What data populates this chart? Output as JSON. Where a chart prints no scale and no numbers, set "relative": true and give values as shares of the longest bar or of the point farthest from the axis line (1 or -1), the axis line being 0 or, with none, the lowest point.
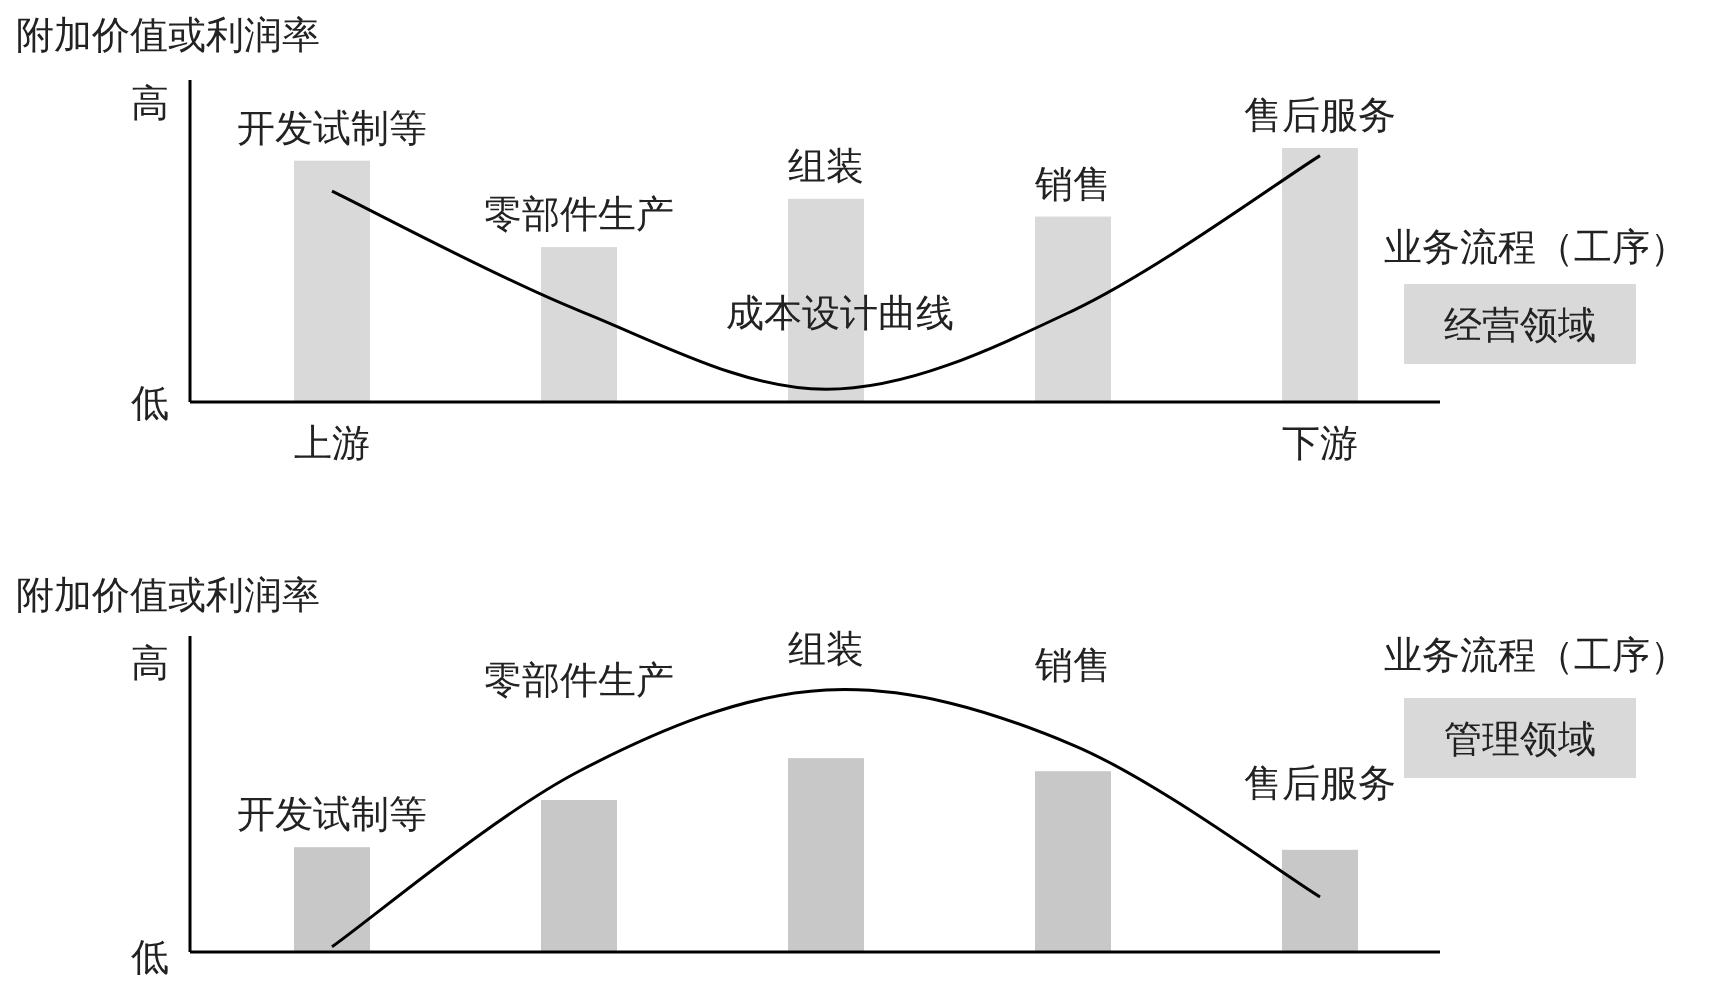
{
  "chart_data": [
    {
      "type": "bar",
      "relative": true,
      "ylabel": "附加价值或利润率",
      "categories": [
        "上游",
        null,
        null,
        null,
        "下游"
      ],
      "series": [
        {
          "color": "#d9d9d9",
          "values": [
            0.95,
            0.61,
            0.8,
            0.73,
            1.0
          ]
        },
        {
          "type": "line",
          "color": "#000000",
          "values": [
            0.83,
            0.36,
            0.05,
            0.36,
            0.97
          ]
        }
      ],
      "annotations": [
        "开发试制等",
        "零部件生产",
        "组装",
        "销售",
        "售后服务",
        "高",
        "低",
        "成本设计曲线",
        "业务流程（工序）",
        "经营领域"
      ]
    },
    {
      "type": "bar",
      "relative": true,
      "ylabel": "附加价值或利润率",
      "categories": [
        null,
        null,
        null,
        null,
        null
      ],
      "series": [
        {
          "color": "#c8c8c8",
          "values": [
            0.4,
            0.58,
            0.74,
            0.69,
            0.39
          ]
        },
        {
          "type": "line",
          "color": "#000000",
          "values": [
            0.02,
            0.69,
            1.0,
            0.79,
            0.21
          ]
        }
      ],
      "annotations": [
        "开发试制等",
        "零部件生产",
        "组装",
        "销售",
        "售后服务",
        "高",
        "低",
        "业务流程（工序）",
        "管理领域"
      ]
    }
  ]
}
